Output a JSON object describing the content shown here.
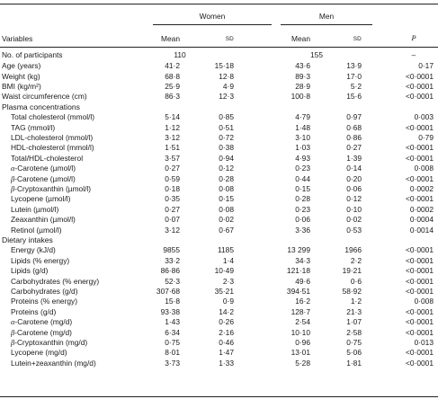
{
  "header": {
    "women": "Women",
    "men": "Men",
    "variables": "Variables",
    "mean": "Mean",
    "sd": "SD",
    "p": "P"
  },
  "participants": {
    "label": "No. of participants",
    "women": "110",
    "men": "155",
    "p": "–"
  },
  "rows": [
    {
      "label": "Age (years)",
      "indent": 0,
      "wm": "41·2",
      "wsd": "15·18",
      "mm": "43·6",
      "msd": "13·9",
      "p": "0·17"
    },
    {
      "label": "Weight (kg)",
      "indent": 0,
      "wm": "68·8",
      "wsd": "12·8",
      "mm": "89·3",
      "msd": "17·0",
      "p": "<0·0001"
    },
    {
      "label": "BMI (kg/m²)",
      "indent": 0,
      "wm": "25·9",
      "wsd": "4·9",
      "mm": "28·9",
      "msd": "5·2",
      "p": "<0·0001"
    },
    {
      "label": "Waist circumference (cm)",
      "indent": 0,
      "wm": "86·3",
      "wsd": "12·3",
      "mm": "100·8",
      "msd": "15·6",
      "p": "<0·0001"
    },
    {
      "label": "Plasma concentrations",
      "indent": 0,
      "group": true
    },
    {
      "label": "Total cholesterol (mmol/l)",
      "indent": 1,
      "wm": "5·14",
      "wsd": "0·85",
      "mm": "4·79",
      "msd": "0·97",
      "p": "0·003"
    },
    {
      "label": "TAG (mmol/l)",
      "indent": 1,
      "wm": "1·12",
      "wsd": "0·51",
      "mm": "1·48",
      "msd": "0·68",
      "p": "<0·0001"
    },
    {
      "label": "LDL-cholesterol (mmol/l)",
      "indent": 1,
      "wm": "3·12",
      "wsd": "0·72",
      "mm": "3·10",
      "msd": "0·86",
      "p": "0·79"
    },
    {
      "label": "HDL-cholesterol (mmol/l)",
      "indent": 1,
      "wm": "1·51",
      "wsd": "0·38",
      "mm": "1·03",
      "msd": "0·27",
      "p": "<0·0001"
    },
    {
      "label": "Total/HDL-cholesterol",
      "indent": 1,
      "wm": "3·57",
      "wsd": "0·94",
      "mm": "4·93",
      "msd": "1·39",
      "p": "<0·0001"
    },
    {
      "label": "-Carotene (µmol/l)",
      "greek": "α",
      "indent": 1,
      "wm": "0·27",
      "wsd": "0·12",
      "mm": "0·23",
      "msd": "0·14",
      "p": "0·008"
    },
    {
      "label": "-Carotene (µmol/l)",
      "greek": "β",
      "indent": 1,
      "wm": "0·59",
      "wsd": "0·28",
      "mm": "0·44",
      "msd": "0·20",
      "p": "<0·0001"
    },
    {
      "label": "-Cryptoxanthin (µmol/l)",
      "greek": "β",
      "indent": 1,
      "wm": "0·18",
      "wsd": "0·08",
      "mm": "0·15",
      "msd": "0·06",
      "p": "0·0002"
    },
    {
      "label": "Lycopene (µmol/l)",
      "indent": 1,
      "wm": "0·35",
      "wsd": "0·15",
      "mm": "0·28",
      "msd": "0·12",
      "p": "<0·0001"
    },
    {
      "label": "Lutein (µmol/l)",
      "indent": 1,
      "wm": "0·27",
      "wsd": "0·08",
      "mm": "0·23",
      "msd": "0·10",
      "p": "0·0002"
    },
    {
      "label": "Zeaxanthin (µmol/l)",
      "indent": 1,
      "wm": "0·07",
      "wsd": "0·02",
      "mm": "0·06",
      "msd": "0·02",
      "p": "0·0004"
    },
    {
      "label": "Retinol (µmol/l)",
      "indent": 1,
      "wm": "3·12",
      "wsd": "0·67",
      "mm": "3·36",
      "msd": "0·53",
      "p": "0·0014"
    },
    {
      "label": "Dietary intakes",
      "indent": 0,
      "group": true
    },
    {
      "label": "Energy (kJ/d)",
      "indent": 1,
      "wm": "9855",
      "wsd": "1185",
      "mm": "13 299",
      "msd": "1966",
      "p": "<0·0001"
    },
    {
      "label": "Lipids (% energy)",
      "indent": 1,
      "wm": "33·2",
      "wsd": "1·4",
      "mm": "34·3",
      "msd": "2·2",
      "p": "<0·0001"
    },
    {
      "label": "Lipids (g/d)",
      "indent": 1,
      "wm": "86·86",
      "wsd": "10·49",
      "mm": "121·18",
      "msd": "19·21",
      "p": "<0·0001"
    },
    {
      "label": "Carbohydrates (% energy)",
      "indent": 1,
      "wm": "52·3",
      "wsd": "2·3",
      "mm": "49·6",
      "msd": "0·6",
      "p": "<0·0001"
    },
    {
      "label": "Carbohydrates (g/d)",
      "indent": 1,
      "wm": "307·68",
      "wsd": "35·21",
      "mm": "394·51",
      "msd": "58·92",
      "p": "<0·0001"
    },
    {
      "label": "Proteins (% energy)",
      "indent": 1,
      "wm": "15·8",
      "wsd": "0·9",
      "mm": "16·2",
      "msd": "1·2",
      "p": "0·008"
    },
    {
      "label": "Proteins (g/d)",
      "indent": 1,
      "wm": "93·38",
      "wsd": "14·2",
      "mm": "128·7",
      "msd": "21·3",
      "p": "<0·0001"
    },
    {
      "label": "-Carotene (mg/d)",
      "greek": "α",
      "indent": 1,
      "wm": "1·43",
      "wsd": "0·26",
      "mm": "2·54",
      "msd": "1·07",
      "p": "<0·0001"
    },
    {
      "label": "-Carotene (mg/d)",
      "greek": "β",
      "indent": 1,
      "wm": "6·34",
      "wsd": "2·16",
      "mm": "10·10",
      "msd": "2·58",
      "p": "<0·0001"
    },
    {
      "label": "-Cryptoxanthin (mg/d)",
      "greek": "β",
      "indent": 1,
      "wm": "0·75",
      "wsd": "0·46",
      "mm": "0·96",
      "msd": "0·75",
      "p": "0·013"
    },
    {
      "label": "Lycopene (mg/d)",
      "indent": 1,
      "wm": "8·01",
      "wsd": "1·47",
      "mm": "13·01",
      "msd": "5·06",
      "p": "<0·0001"
    },
    {
      "label": "Lutein+zeaxanthin (mg/d)",
      "indent": 1,
      "wm": "3·73",
      "wsd": "1·33",
      "mm": "5·28",
      "msd": "1·81",
      "p": "<0·0001"
    }
  ]
}
